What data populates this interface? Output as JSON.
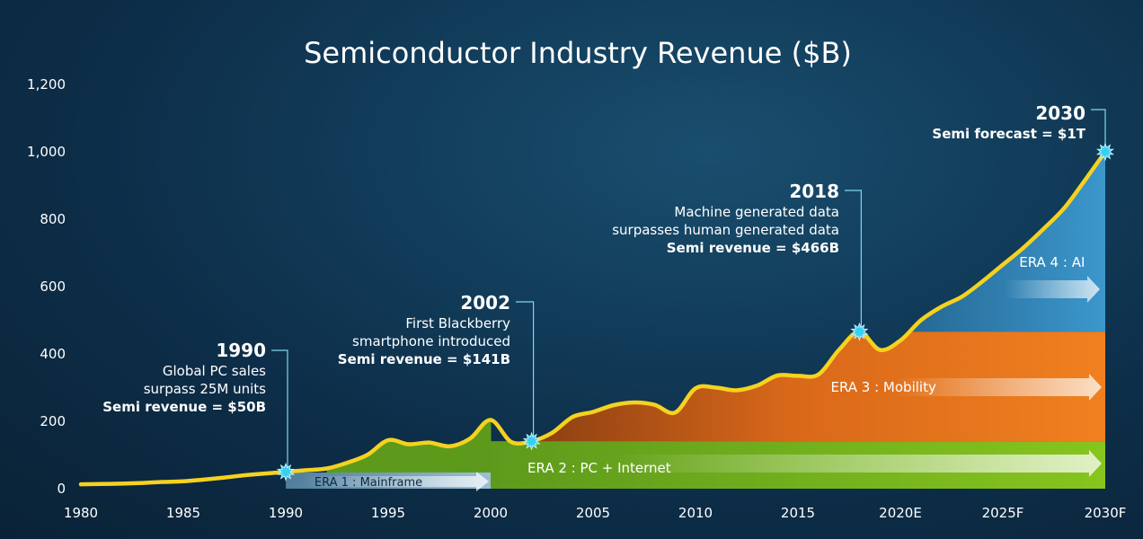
{
  "chart_data": {
    "type": "area",
    "title": "Semiconductor Industry Revenue ($B)",
    "xlabel": "",
    "ylabel": "",
    "ylim": [
      0,
      1200
    ],
    "yticks": [
      0,
      200,
      400,
      600,
      800,
      1000,
      1200
    ],
    "ytick_labels": [
      "0",
      "200",
      "400",
      "600",
      "800",
      "1,000",
      "1,200"
    ],
    "xticks": [
      1980,
      1985,
      1990,
      1995,
      2000,
      2005,
      2010,
      2015,
      2020,
      2025,
      2030
    ],
    "xtick_labels": [
      "1980",
      "1985",
      "1990",
      "1995",
      "2000",
      "2005",
      "2010",
      "2015",
      "2020E",
      "2025F",
      "2030F"
    ],
    "grid": false,
    "series": [
      {
        "x": [
          1980,
          1981,
          1982,
          1983,
          1984,
          1985,
          1986,
          1987,
          1988,
          1989,
          1990,
          1991,
          1992,
          1993,
          1994,
          1995,
          1996,
          1997,
          1998,
          1999,
          2000,
          2001,
          2002,
          2003,
          2004,
          2005,
          2006,
          2007,
          2008,
          2009,
          2010,
          2011,
          2012,
          2013,
          2014,
          2015,
          2016,
          2017,
          2018,
          2019,
          2020,
          2021,
          2022,
          2023,
          2024,
          2025,
          2026,
          2027,
          2028,
          2029,
          2030
        ],
        "values": [
          13,
          14,
          15,
          17,
          20,
          22,
          27,
          33,
          40,
          45,
          50,
          55,
          60,
          77,
          101,
          144,
          132,
          137,
          126,
          149,
          204,
          139,
          141,
          166,
          213,
          228,
          248,
          256,
          249,
          226,
          298,
          300,
          292,
          306,
          336,
          335,
          339,
          412,
          466,
          412,
          440,
          500,
          540,
          570,
          615,
          665,
          715,
          772,
          833,
          915,
          1000
        ]
      }
    ],
    "eras": [
      {
        "label": "ERA 1 : Mainframe",
        "x_start": 1990,
        "x_end": 2000
      },
      {
        "label": "ERA 2 : PC + Internet",
        "x_start": 2000,
        "x_end": 2030,
        "y_level": 141
      },
      {
        "label": "ERA 3 : Mobility",
        "x_start": 2002,
        "x_end": 2030,
        "y_level": 466
      },
      {
        "label": "ERA 4 : AI",
        "x_start": 2018,
        "x_end": 2030,
        "y_level": 1000
      }
    ],
    "annotations": [
      {
        "x": 1990,
        "y": 50,
        "year": "1990",
        "lines": [
          "Global PC sales",
          "surpass 25M units"
        ],
        "bold": "Semi revenue = $50B"
      },
      {
        "x": 2002,
        "y": 141,
        "year": "2002",
        "lines": [
          "First Blackberry",
          "smartphone introduced"
        ],
        "bold": "Semi revenue = $141B"
      },
      {
        "x": 2018,
        "y": 466,
        "year": "2018",
        "lines": [
          "Machine generated data",
          "surpasses human generated data"
        ],
        "bold": "Semi revenue = $466B"
      },
      {
        "x": 2030,
        "y": 1000,
        "year": "2030",
        "lines": [],
        "bold": "Semi forecast = $1T"
      }
    ],
    "colors": {
      "line": "#f5d21f",
      "era1": "#6f98b5",
      "era2": "#79b12a",
      "era3": "#e8781e",
      "era4": "#3a8fc4",
      "star": "#35d0f2"
    }
  }
}
